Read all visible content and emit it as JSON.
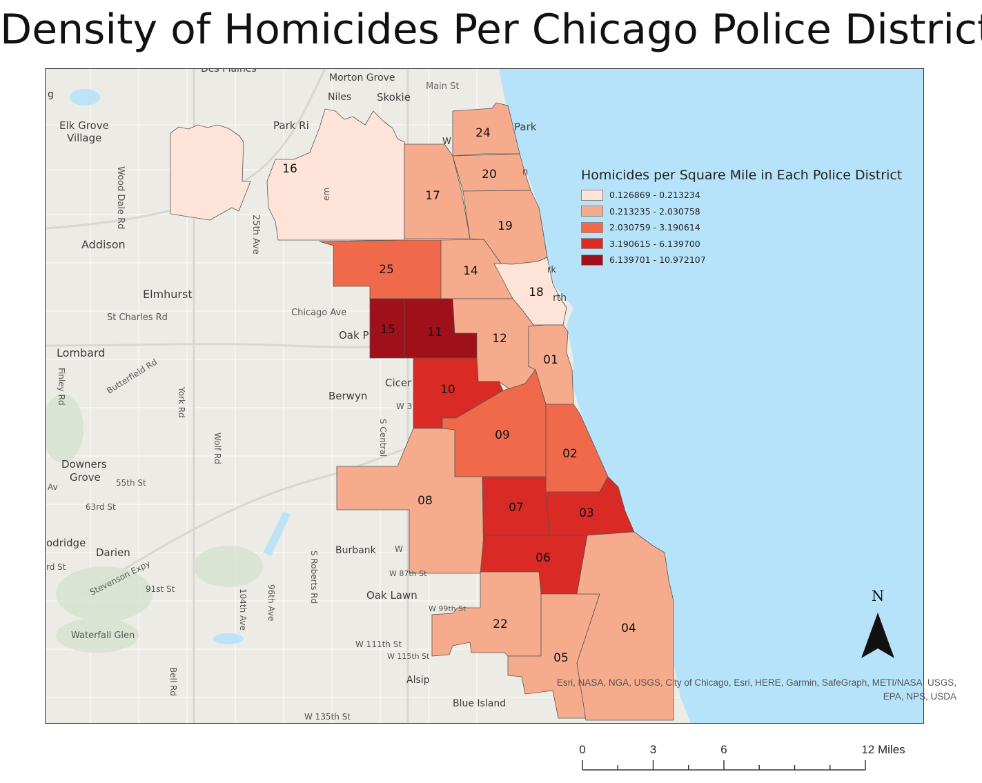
{
  "title": "Density of Homicides Per Chicago Police District",
  "legend": {
    "title": "Homicides per Square Mile in Each Police District",
    "classes": [
      {
        "label": "0.126869 - 0.213234",
        "color": "#fde3d8"
      },
      {
        "label": "0.213235 - 2.030758",
        "color": "#f6ac8c"
      },
      {
        "label": "2.030759 - 3.190614",
        "color": "#f0694b"
      },
      {
        "label": "3.190615 - 6.139700",
        "color": "#d92a25"
      },
      {
        "label": "6.139701 - 10.972107",
        "color": "#a0101a"
      }
    ]
  },
  "districts": [
    {
      "id": "01",
      "class": 1
    },
    {
      "id": "02",
      "class": 2
    },
    {
      "id": "03",
      "class": 3
    },
    {
      "id": "04",
      "class": 1
    },
    {
      "id": "05",
      "class": 1
    },
    {
      "id": "06",
      "class": 3
    },
    {
      "id": "07",
      "class": 3
    },
    {
      "id": "08",
      "class": 1
    },
    {
      "id": "09",
      "class": 2
    },
    {
      "id": "10",
      "class": 3
    },
    {
      "id": "11",
      "class": 4
    },
    {
      "id": "12",
      "class": 1
    },
    {
      "id": "14",
      "class": 1
    },
    {
      "id": "15",
      "class": 4
    },
    {
      "id": "16",
      "class": 0
    },
    {
      "id": "17",
      "class": 1
    },
    {
      "id": "18",
      "class": 0
    },
    {
      "id": "19",
      "class": 1
    },
    {
      "id": "20",
      "class": 1
    },
    {
      "id": "22",
      "class": 1
    },
    {
      "id": "24",
      "class": 1
    },
    {
      "id": "25",
      "class": 2
    }
  ],
  "basemap_labels": {
    "des_plaines": "Des Plaines",
    "morton_grove": "Morton Grove",
    "main_st": "Main St",
    "niles": "Niles",
    "skokie": "Skokie",
    "elk_grove_1": "Elk Grove",
    "elk_grove_2": "Village",
    "park_ridge": "Park Ri",
    "park": "Park",
    "wood_dale": "Wood Dale Rd",
    "twentyfifth": "25th Ave",
    "addison": "Addison",
    "elmhurst": "Elmhurst",
    "st_charles": "St Charles Rd",
    "chicago_ave": "Chicago Ave",
    "oak_park": "Oak P",
    "lombard": "Lombard",
    "butterfield": "Butterfield Rd",
    "finley": "Finley Rd",
    "york": "York Rd",
    "cicero": "Cicer",
    "berwyn": "Berwyn",
    "w3": "W 3",
    "s_central": "S Central",
    "wolf": "Wolf Rd",
    "downers_1": "Downers",
    "downers_2": "Grove",
    "fiftyfifth": "55th St",
    "av": "Av",
    "sixtythird": "63rd St",
    "woodridge": "odridge",
    "darien": "Darien",
    "rd_st": "rd St",
    "stevenson": "Stevenson Expy",
    "ninetyfirst": "91st St",
    "hundredfourth": "104th Ave",
    "ninetysixth": "96th Ave",
    "s_roberts": "S Roberts Rd",
    "burbank": "Burbank",
    "w_small": "W",
    "w87": "W 87th St",
    "oak_lawn": "Oak Lawn",
    "w99": "W 99th St",
    "waterfall": "Waterfall Glen",
    "w111": "W 111th St",
    "w115": "W 115th St",
    "bell": "Bell Rd",
    "alsip": "Alsip",
    "blue_island": "Blue Island",
    "w135": "W 135th St",
    "g": "g",
    "rk": "rk",
    "rth": "rth",
    "n_frag": "n",
    "w_frag": "W",
    "em": "em"
  },
  "attribution": {
    "line1": "Esri, NASA, NGA, USGS, City of Chicago, Esri, HERE, Garmin, SafeGraph, METI/NASA, USGS,",
    "line2": "EPA, NPS, USDA"
  },
  "north_arrow": {
    "label": "N"
  },
  "scale": {
    "ticks": [
      "0",
      "3",
      "6",
      "12 Miles"
    ],
    "values": [
      0,
      3,
      6,
      12
    ],
    "max_miles": 12
  }
}
